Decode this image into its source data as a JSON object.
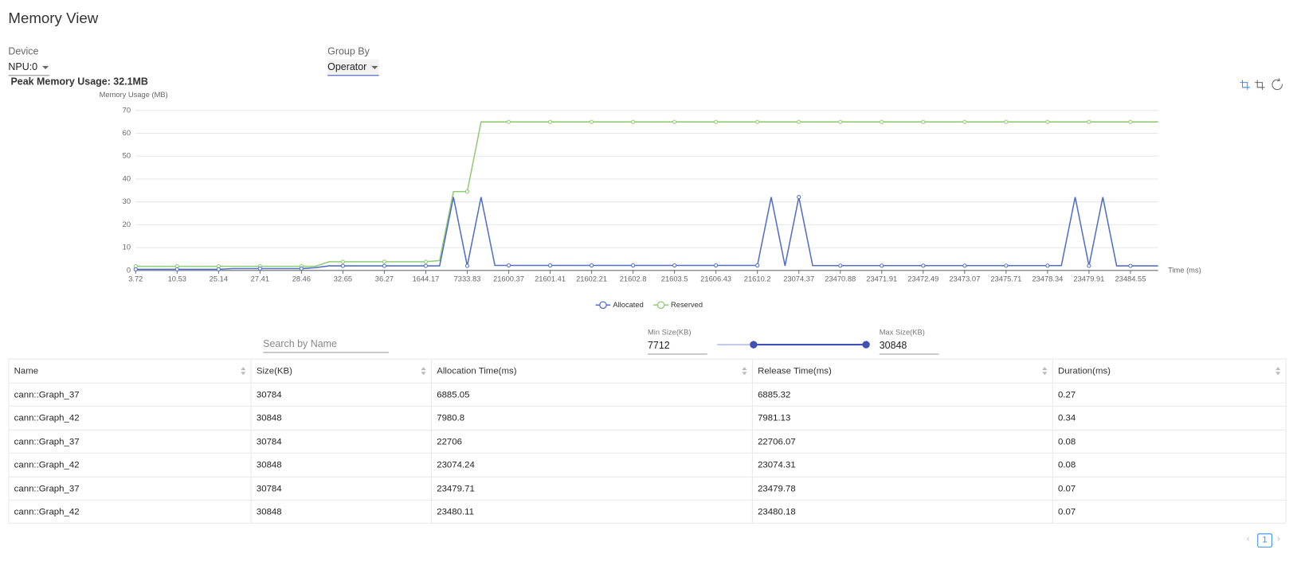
{
  "header": {
    "title": "Memory View"
  },
  "controls": {
    "device_label": "Device",
    "device_value": "NPU:0",
    "group_by_label": "Group By",
    "group_by_value": "Operator"
  },
  "peak": "Peak Memory Usage: 32.1MB",
  "chart_data": {
    "type": "line",
    "y_label": "Memory Usage (MB)",
    "x_label": "Time (ms)",
    "categories": [
      "3.72",
      null,
      null,
      "10.53",
      null,
      null,
      "25.14",
      null,
      null,
      "27.41",
      null,
      null,
      "28.46",
      null,
      null,
      "32.65",
      null,
      null,
      "36.27",
      null,
      null,
      "1644.17",
      null,
      null,
      "7333.83",
      null,
      null,
      "21600.37",
      null,
      null,
      "21601.41",
      null,
      null,
      "21602.21",
      null,
      null,
      "21602.8",
      null,
      null,
      "21603.5",
      null,
      null,
      "21606.43",
      null,
      null,
      "21610.2",
      null,
      null,
      "23074.37",
      null,
      null,
      "23470.88",
      null,
      null,
      "23471.91",
      null,
      null,
      "23472.49",
      null,
      null,
      "23473.07",
      null,
      null,
      "23475.71",
      null,
      null,
      "23478.34",
      null,
      null,
      "23479.91",
      null,
      null,
      "23484.55",
      null,
      null
    ],
    "series": [
      {
        "name": "Allocated",
        "color": "#5470c6",
        "values": [
          0.5,
          0.5,
          0.5,
          0.5,
          0.5,
          0.5,
          0.5,
          0.8,
          0.8,
          0.8,
          0.8,
          0.8,
          0.8,
          1.2,
          2,
          2,
          2,
          2,
          2,
          2,
          2,
          2,
          2,
          32.1,
          2,
          32.1,
          2.2,
          2.2,
          2.2,
          2.2,
          2.2,
          2.2,
          2.2,
          2.2,
          2.2,
          2.2,
          2.2,
          2.2,
          2.2,
          2.2,
          2.2,
          2.2,
          2.2,
          2.2,
          2.2,
          2.2,
          32.1,
          2,
          32.1,
          2.1,
          2.1,
          2.1,
          2.1,
          2.1,
          2.1,
          2.1,
          2.1,
          2.1,
          2.1,
          2.1,
          2.1,
          2.1,
          2.1,
          2.1,
          2.1,
          2.1,
          2.1,
          2.1,
          32.1,
          2,
          32.1,
          2,
          2,
          2,
          2
        ]
      },
      {
        "name": "Reserved",
        "color": "#91cc75",
        "values": [
          1.8,
          1.8,
          1.8,
          1.8,
          1.8,
          1.8,
          1.8,
          1.8,
          1.8,
          1.8,
          1.8,
          1.8,
          1.8,
          1.8,
          3.8,
          3.8,
          3.8,
          3.8,
          3.8,
          3.8,
          3.8,
          3.8,
          4.3,
          34.5,
          34.5,
          65,
          65,
          65,
          65,
          65,
          65,
          65,
          65,
          65,
          65,
          65,
          65,
          65,
          65,
          65,
          65,
          65,
          65,
          65,
          65,
          65,
          65,
          65,
          65,
          65,
          65,
          65,
          65,
          65,
          65,
          65,
          65,
          65,
          65,
          65,
          65,
          65,
          65,
          65,
          65,
          65,
          65,
          65,
          65,
          65,
          65,
          65,
          65,
          65,
          65
        ]
      }
    ],
    "ylim": [
      0,
      70
    ],
    "yticks": [
      0,
      10,
      20,
      30,
      40,
      50,
      60,
      70
    ],
    "grid": true,
    "legend": "bottom"
  },
  "filters": {
    "search_placeholder": "Search by Name",
    "min_label": "Min Size(KB)",
    "min_value": "7712",
    "max_label": "Max Size(KB)",
    "max_value": "30848"
  },
  "table": {
    "columns": [
      "Name",
      "Size(KB)",
      "Allocation Time(ms)",
      "Release Time(ms)",
      "Duration(ms)"
    ],
    "rows": [
      [
        "cann::Graph_37",
        "30784",
        "6885.05",
        "6885.32",
        "0.27"
      ],
      [
        "cann::Graph_42",
        "30848",
        "7980.8",
        "7981.13",
        "0.34"
      ],
      [
        "cann::Graph_37",
        "30784",
        "22706",
        "22706.07",
        "0.08"
      ],
      [
        "cann::Graph_42",
        "30848",
        "23074.24",
        "23074.31",
        "0.08"
      ],
      [
        "cann::Graph_37",
        "30784",
        "23479.71",
        "23479.78",
        "0.07"
      ],
      [
        "cann::Graph_42",
        "30848",
        "23480.11",
        "23480.18",
        "0.07"
      ]
    ]
  },
  "pagination": {
    "page": "1"
  }
}
